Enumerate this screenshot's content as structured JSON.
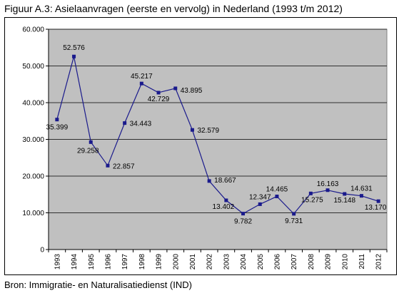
{
  "caption": "Figuur A.3: Asielaanvragen (eerste en vervolg) in Nederland (1993 t/m 2012)",
  "source": "Bron: Immigratie- en Naturalisatiedienst (IND)",
  "colors": {
    "series_line": "#1a1a8c",
    "marker": "#1a1a8c",
    "plot_background": "#c0c0c0",
    "gridline": "#000000"
  },
  "chart_data": {
    "type": "line",
    "title": "",
    "xlabel": "",
    "ylabel": "",
    "categories": [
      "1993",
      "1994",
      "1995",
      "1996",
      "1997",
      "1998",
      "1999",
      "2000",
      "2001",
      "2002",
      "2003",
      "2004",
      "2005",
      "2006",
      "2007",
      "2008",
      "2009",
      "2010",
      "2011",
      "2012"
    ],
    "values": [
      35399,
      52576,
      29258,
      22857,
      34443,
      45217,
      42729,
      43895,
      32579,
      18667,
      13402,
      9782,
      12347,
      14465,
      9731,
      15275,
      16163,
      15148,
      14631,
      13170
    ],
    "data_labels": [
      "35.399",
      "52.576",
      "29.258",
      "22.857",
      "34.443",
      "45.217",
      "42.729",
      "43.895",
      "32.579",
      "18.667",
      "13.402",
      "9.782",
      "12.347",
      "14.465",
      "9.731",
      "15.275",
      "16.163",
      "15.148",
      "14.631",
      "13.170"
    ],
    "ylim": [
      0,
      60000
    ],
    "y_ticks": [
      0,
      10000,
      20000,
      30000,
      40000,
      50000,
      60000
    ],
    "y_tick_labels": [
      "0",
      "10.000",
      "20.000",
      "30.000",
      "40.000",
      "50.000",
      "60.000"
    ],
    "grid": true,
    "legend": "none"
  }
}
